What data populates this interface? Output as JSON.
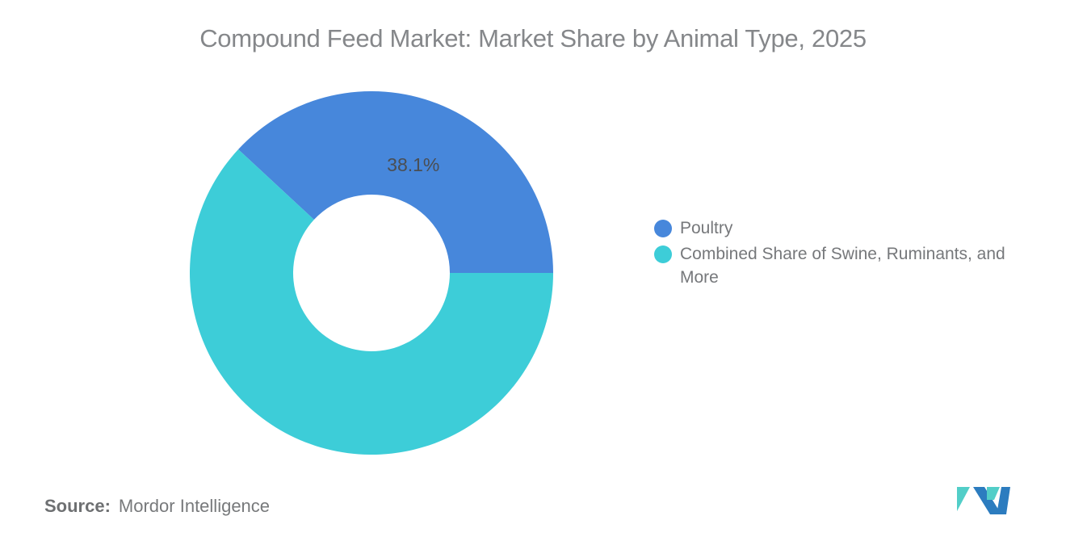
{
  "chart_data": {
    "type": "pie",
    "subtype": "donut",
    "title": "Compound Feed Market: Market Share by Animal Type, 2025",
    "series": [
      {
        "name": "Poultry",
        "value": 38.1,
        "color": "#4787DB",
        "data_label": "38.1%"
      },
      {
        "name": "Combined Share of Swine, Ruminants, and More",
        "value": 61.9,
        "color": "#3DCDD8",
        "data_label": ""
      }
    ],
    "legend_position": "right",
    "start_angle_deg": 0,
    "direction": "counterclockwise",
    "inner_radius_ratio": 0.43,
    "data_label_color": "#4A4E53",
    "title_color": "#85878A",
    "legend_text_color": "#76787B"
  },
  "footer": {
    "source_label": "Source:",
    "source_value": "Mordor Intelligence",
    "logo_name": "mordor-intelligence-logo",
    "logo_colors": {
      "blue": "#2C7CBF",
      "teal": "#52CEC8"
    }
  }
}
